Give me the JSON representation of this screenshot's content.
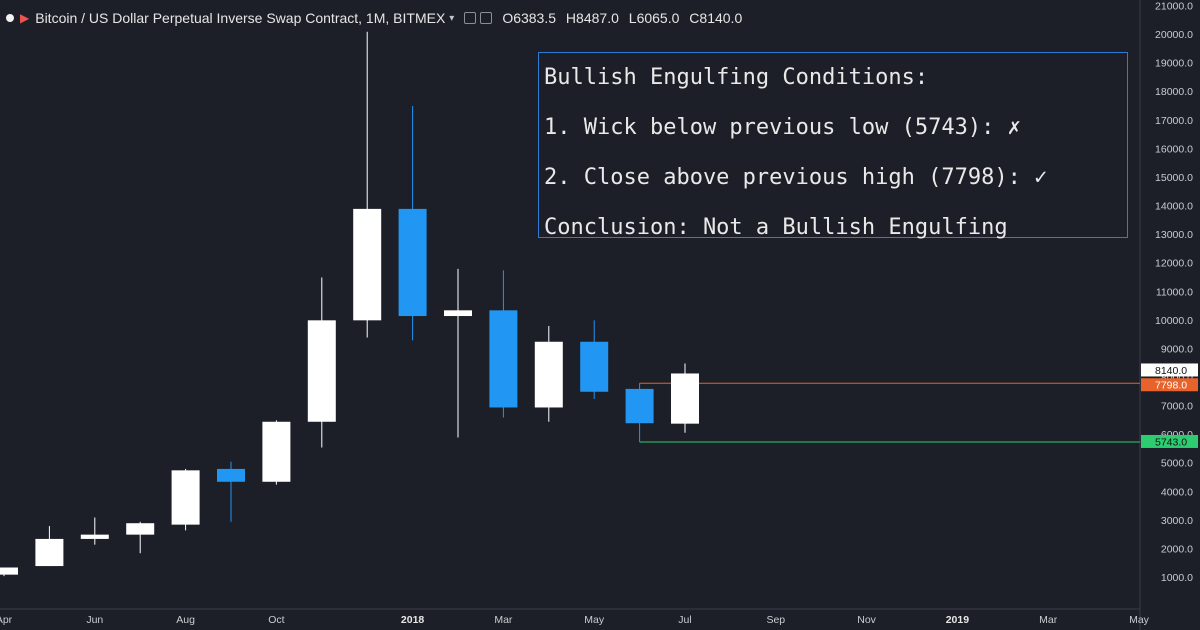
{
  "header": {
    "title": "Bitcoin / US Dollar Perpetual Inverse Swap Contract, 1M, BITMEX",
    "open_label": "O",
    "open": "6383.5",
    "high_label": "H",
    "high": "8487.0",
    "low_label": "L",
    "low": "6065.0",
    "close_label": "C",
    "close": "8140.0"
  },
  "annotation": {
    "line1": "Bullish Engulfing Conditions:",
    "line2": "1. Wick below previous low (5743): ✗",
    "line3": "2. Close above previous high (7798): ✓",
    "line4": "Conclusion: Not a Bullish Engulfing"
  },
  "colors": {
    "background": "#1c1f27",
    "bull": "#ffffff",
    "bear": "#2196f3",
    "high_line": "#e8622c",
    "low_line": "#2ecc71",
    "annotation_border": "#2c7bd6"
  },
  "chart_data": {
    "type": "candlestick",
    "yticks": [
      1000,
      2000,
      3000,
      4000,
      5000,
      6000,
      7000,
      8000,
      9000,
      10000,
      11000,
      12000,
      13000,
      14000,
      15000,
      16000,
      17000,
      18000,
      19000,
      20000,
      21000
    ],
    "ytick_labels": [
      "1000.0",
      "2000.0",
      "3000.0",
      "4000.0",
      "5000.0",
      "6000.0",
      "7000.0",
      "8000.0",
      "9000.0",
      "10000.0",
      "11000.0",
      "12000.0",
      "13000.0",
      "14000.0",
      "15000.0",
      "16000.0",
      "17000.0",
      "18000.0",
      "19000.0",
      "20000.0",
      "21000.0"
    ],
    "ylim": [
      0,
      21200
    ],
    "xticks": [
      {
        "label": "Apr",
        "month": 0,
        "bold": false
      },
      {
        "label": "Jun",
        "month": 2,
        "bold": false
      },
      {
        "label": "Aug",
        "month": 4,
        "bold": false
      },
      {
        "label": "Oct",
        "month": 6,
        "bold": false
      },
      {
        "label": "2018",
        "month": 9,
        "bold": true
      },
      {
        "label": "Mar",
        "month": 11,
        "bold": false
      },
      {
        "label": "May",
        "month": 13,
        "bold": false
      },
      {
        "label": "Jul",
        "month": 15,
        "bold": false
      },
      {
        "label": "Sep",
        "month": 17,
        "bold": false
      },
      {
        "label": "Nov",
        "month": 19,
        "bold": false
      },
      {
        "label": "2019",
        "month": 21,
        "bold": true
      },
      {
        "label": "Mar",
        "month": 23,
        "bold": false
      },
      {
        "label": "May",
        "month": 25,
        "bold": false
      }
    ],
    "candles": [
      {
        "month": 0,
        "open": 1100,
        "high": 1350,
        "low": 1050,
        "close": 1350
      },
      {
        "month": 1,
        "open": 1400,
        "high": 2800,
        "low": 1400,
        "close": 2350
      },
      {
        "month": 2,
        "open": 2350,
        "high": 3100,
        "low": 2150,
        "close": 2500
      },
      {
        "month": 3,
        "open": 2500,
        "high": 2950,
        "low": 1850,
        "close": 2900
      },
      {
        "month": 4,
        "open": 2850,
        "high": 4800,
        "low": 2650,
        "close": 4750
      },
      {
        "month": 5,
        "open": 4800,
        "high": 5050,
        "low": 2950,
        "close": 4350
      },
      {
        "month": 6,
        "open": 4350,
        "high": 6500,
        "low": 4250,
        "close": 6450
      },
      {
        "month": 7,
        "open": 6450,
        "high": 11500,
        "low": 5550,
        "close": 10000
      },
      {
        "month": 8,
        "open": 10000,
        "high": 20100,
        "low": 9400,
        "close": 13900
      },
      {
        "month": 9,
        "open": 13900,
        "high": 17500,
        "low": 9300,
        "close": 10150
      },
      {
        "month": 10,
        "open": 10150,
        "high": 11800,
        "low": 5900,
        "close": 10350
      },
      {
        "month": 11,
        "open": 10350,
        "high": 11750,
        "low": 6600,
        "close": 6950
      },
      {
        "month": 12,
        "open": 6950,
        "high": 9800,
        "low": 6450,
        "close": 9250
      },
      {
        "month": 13,
        "open": 9250,
        "high": 10000,
        "low": 7250,
        "close": 7500
      },
      {
        "month": 14,
        "open": 7600,
        "high": 7798,
        "low": 5743,
        "close": 6400
      },
      {
        "month": 15,
        "open": 6383.5,
        "high": 8487,
        "low": 6065,
        "close": 8140
      }
    ],
    "price_labels": [
      {
        "value": 8140,
        "label": "8140.0",
        "style": "close"
      },
      {
        "value": 7798,
        "label": "7798.0",
        "style": "high"
      },
      {
        "value": 5743,
        "label": "5743.0",
        "style": "low"
      }
    ],
    "hlines": [
      {
        "value": 7798,
        "from_month": 14,
        "style": "high"
      },
      {
        "value": 5743,
        "from_month": 14,
        "style": "low"
      }
    ]
  }
}
